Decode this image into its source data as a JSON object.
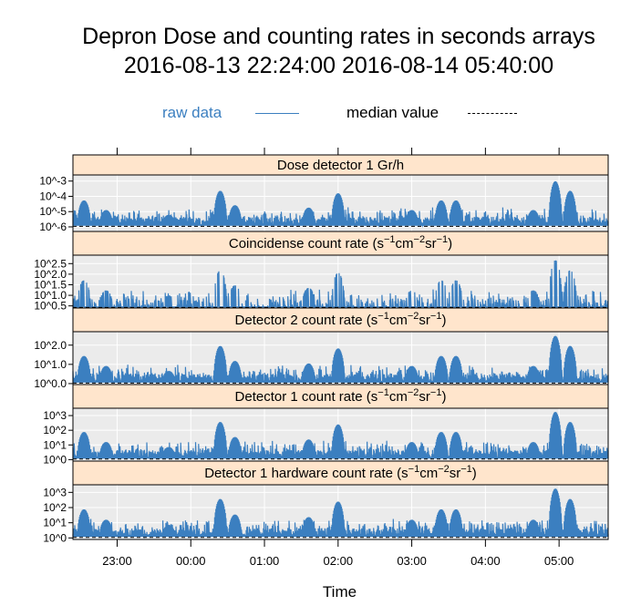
{
  "chart_data": {
    "type": "line",
    "title": "Depron Dose and counting rates in seconds arrays",
    "subtitle": "2016-08-13 22:24:00 2016-08-14 05:40:00",
    "xlabel": "Time",
    "x_ticks": [
      "23:00",
      "00:00",
      "01:00",
      "02:00",
      "03:00",
      "04:00",
      "05:00"
    ],
    "x_range": [
      "2016-08-13 22:24:00",
      "2016-08-14 05:40:00"
    ],
    "grid": true,
    "legend_placement": "top",
    "legend": [
      {
        "label": "raw data",
        "style": "solid",
        "color": "#3b7fc0"
      },
      {
        "label": "median value",
        "style": "dashed",
        "color": "#000000"
      }
    ],
    "peaks_hours": [
      22.55,
      22.85,
      23.7,
      0.4,
      0.6,
      1.6,
      2.0,
      3.0,
      3.4,
      3.6,
      4.65,
      4.95,
      5.15
    ],
    "panels": [
      {
        "strip": "Dose detector 1 Gr/h",
        "scale": "log10",
        "ylim": [
          -6.3,
          -2.6
        ],
        "ticks": [
          {
            "v": -3,
            "label": "10^-3"
          },
          {
            "v": -4,
            "label": "10^-4"
          },
          {
            "v": -5,
            "label": "10^-5"
          },
          {
            "v": -6,
            "label": "10^-6"
          }
        ],
        "median": -6.0
      },
      {
        "strip": "Coincidense count rate (s^{-1}cm^{-2}sr^{-1})",
        "scale": "log10",
        "ylim": [
          0.4,
          2.9
        ],
        "ticks": [
          {
            "v": 2.5,
            "label": "10^2.5"
          },
          {
            "v": 2.0,
            "label": "10^2.0"
          },
          {
            "v": 1.5,
            "label": "10^1.5"
          },
          {
            "v": 1.0,
            "label": "10^1.0"
          },
          {
            "v": 0.5,
            "label": "10^0.5"
          }
        ],
        "median": 0.4
      },
      {
        "strip": "Detector 2 count rate (s^{-1}cm^{-2}sr^{-1})",
        "scale": "log10",
        "ylim": [
          -0.05,
          2.7
        ],
        "ticks": [
          {
            "v": 2.0,
            "label": "10^2.0"
          },
          {
            "v": 1.0,
            "label": "10^1.0"
          },
          {
            "v": 0.0,
            "label": "10^0.0"
          }
        ],
        "median": 0.0
      },
      {
        "strip": "Detector 1 count rate (s^{-1}cm^{-2}sr^{-1})",
        "scale": "log10",
        "ylim": [
          -0.1,
          3.5
        ],
        "ticks": [
          {
            "v": 3,
            "label": "10^3"
          },
          {
            "v": 2,
            "label": "10^2"
          },
          {
            "v": 1,
            "label": "10^1"
          },
          {
            "v": 0,
            "label": "10^0"
          }
        ],
        "median": 0.0
      },
      {
        "strip": "Detector 1 hardware count rate (s^{-1}cm^{-2}sr^{-1})",
        "scale": "log10",
        "ylim": [
          -0.1,
          3.5
        ],
        "ticks": [
          {
            "v": 3,
            "label": "10^3"
          },
          {
            "v": 2,
            "label": "10^2"
          },
          {
            "v": 1,
            "label": "10^1"
          },
          {
            "v": 0,
            "label": "10^0"
          }
        ],
        "median": 0.0
      }
    ]
  }
}
